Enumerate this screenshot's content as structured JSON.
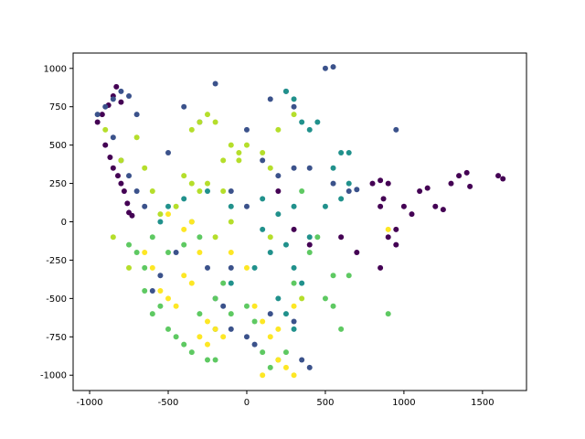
{
  "chart_data": {
    "type": "scatter",
    "xlim": [
      -1105,
      1780
    ],
    "ylim": [
      -1100,
      1100
    ],
    "xticks": [
      -1000,
      -500,
      0,
      500,
      1000,
      1500
    ],
    "yticks": [
      -1000,
      -750,
      -500,
      -250,
      0,
      250,
      500,
      750,
      1000
    ],
    "series": [
      {
        "color": "#440154",
        "x": [
          -950,
          -920,
          -880,
          -850,
          -830,
          -800,
          -900,
          -870,
          -850,
          -820,
          -800,
          -780,
          -760,
          -750,
          -730,
          800,
          850,
          900,
          870,
          850,
          900,
          950,
          1000,
          1050,
          1100,
          1150,
          1200,
          1250,
          1300,
          1350,
          1400,
          1420,
          1600,
          1630,
          700,
          600,
          400,
          300,
          200,
          850,
          950
        ],
        "values": [
          650,
          700,
          760,
          820,
          880,
          780,
          500,
          420,
          350,
          300,
          250,
          200,
          120,
          60,
          40,
          250,
          270,
          250,
          150,
          100,
          -100,
          -150,
          100,
          50,
          200,
          220,
          100,
          80,
          250,
          300,
          320,
          230,
          300,
          280,
          -200,
          -100,
          -150,
          -50,
          200,
          -300,
          -50
        ]
      },
      {
        "color": "#3b528b",
        "x": [
          -950,
          -900,
          -850,
          -800,
          -750,
          -700,
          -850,
          -800,
          -750,
          -700,
          -650,
          150,
          250,
          300,
          500,
          550,
          -300,
          -200,
          0,
          100,
          200,
          300,
          400,
          550,
          650,
          700,
          950,
          -400,
          -500,
          -100,
          0,
          -100,
          -250,
          -200,
          -150,
          -100,
          0,
          50,
          150,
          300,
          350,
          400,
          -450,
          -550,
          -600
        ],
        "values": [
          700,
          750,
          800,
          850,
          820,
          700,
          550,
          400,
          300,
          200,
          100,
          800,
          850,
          750,
          1000,
          1010,
          650,
          900,
          600,
          400,
          300,
          350,
          350,
          250,
          200,
          210,
          600,
          750,
          450,
          200,
          100,
          -300,
          -300,
          -500,
          -550,
          -700,
          -750,
          -800,
          -600,
          -650,
          -900,
          -950,
          -200,
          -350,
          -450
        ]
      },
      {
        "color": "#21918c",
        "x": [
          250,
          300,
          350,
          400,
          450,
          600,
          650,
          550,
          650,
          600,
          500,
          300,
          200,
          100,
          -100,
          -250,
          -400,
          -500,
          -550,
          100,
          250,
          300,
          350,
          200,
          250,
          300,
          -200,
          -100,
          50,
          150,
          400
        ],
        "values": [
          850,
          800,
          650,
          600,
          650,
          450,
          450,
          350,
          250,
          150,
          100,
          100,
          50,
          150,
          100,
          200,
          150,
          100,
          0,
          -50,
          -150,
          -300,
          -400,
          -500,
          -600,
          -700,
          -700,
          -400,
          -300,
          -200,
          -100
        ]
      },
      {
        "color": "#5ec962",
        "x": [
          -750,
          -700,
          -650,
          -650,
          -600,
          -550,
          -500,
          -450,
          -400,
          -350,
          -250,
          -200,
          -300,
          -200,
          -150,
          -100,
          0,
          50,
          100,
          150,
          200,
          250,
          500,
          550,
          600,
          550,
          650,
          900,
          400,
          450,
          350,
          300,
          -400,
          -300,
          -350,
          -500,
          -600
        ],
        "values": [
          -150,
          -200,
          -300,
          -450,
          -600,
          -550,
          -700,
          -750,
          -800,
          -850,
          -900,
          -900,
          -600,
          -500,
          -400,
          -600,
          -550,
          -650,
          -850,
          -950,
          -900,
          -850,
          -500,
          -550,
          -700,
          -350,
          -350,
          -600,
          -200,
          -100,
          200,
          -400,
          -150,
          -100,
          0,
          -200,
          -100
        ]
      },
      {
        "color": "#b5de2b",
        "x": [
          -350,
          -300,
          -250,
          -200,
          -150,
          -100,
          -50,
          0,
          -50,
          -400,
          -350,
          -300,
          -450,
          -550,
          -600,
          -650,
          -700,
          -800,
          -900,
          -250,
          -150,
          100,
          150,
          200,
          300,
          -100,
          -200,
          150,
          350,
          -750,
          -850
        ],
        "values": [
          600,
          650,
          700,
          650,
          400,
          500,
          450,
          500,
          400,
          300,
          250,
          200,
          100,
          50,
          200,
          350,
          550,
          400,
          600,
          250,
          200,
          450,
          350,
          600,
          700,
          0,
          -100,
          -100,
          -500,
          -300,
          -100
        ]
      },
      {
        "color": "#fde725",
        "x": [
          -650,
          -600,
          -550,
          -500,
          -450,
          -400,
          -350,
          -400,
          -350,
          -300,
          -250,
          -200,
          -300,
          -250,
          -150,
          -100,
          0,
          50,
          100,
          150,
          200,
          250,
          300,
          100,
          200,
          -500,
          900,
          300
        ],
        "values": [
          -200,
          -300,
          -450,
          -500,
          -550,
          -350,
          -400,
          -50,
          0,
          -200,
          -650,
          -700,
          -750,
          -800,
          -750,
          -200,
          -300,
          -550,
          -650,
          -750,
          -900,
          -950,
          -1000,
          -1000,
          -700,
          50,
          -50,
          -550
        ]
      }
    ]
  }
}
